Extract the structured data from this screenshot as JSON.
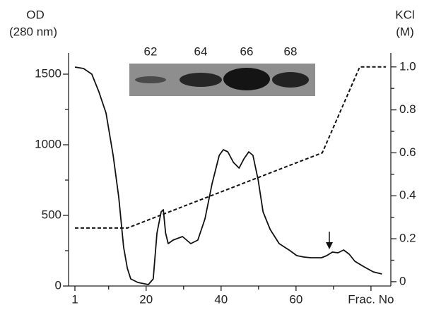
{
  "chart_data": {
    "type": "line",
    "y_label_lines": [
      "OD",
      "(280 nm)"
    ],
    "y2_label_lines": [
      "KCl",
      "(M)"
    ],
    "inset_lanes": [
      "62",
      "64",
      "66",
      "68"
    ],
    "xlim": [
      -0.7,
      85.3
    ],
    "xticks": [
      1,
      20,
      40,
      60,
      {
        "value": 80,
        "label": "Frac. No"
      }
    ],
    "xminor_ticks": [
      10,
      30,
      50,
      70
    ],
    "ylim": [
      0,
      1650
    ],
    "yticks": [
      0,
      500,
      1000,
      1500
    ],
    "yminor_ticks": [
      250,
      750,
      1250
    ],
    "y2lim": [
      -0.02,
      1.065
    ],
    "y2ticks": [
      0,
      0.2,
      0.4,
      0.6,
      0.8,
      {
        "value": 1,
        "label": "1.0"
      }
    ],
    "y2minor_ticks": [
      0.1,
      0.3,
      0.5,
      0.7,
      0.9
    ],
    "series": [
      {
        "color": "#111111",
        "style": "solid",
        "axis": "y",
        "x": [
          1.0,
          3.3,
          5.5,
          7.4,
          9.3,
          11.2,
          12.7,
          14.0,
          15.0,
          15.9,
          17.8,
          20.6,
          21.9,
          22.9,
          24.0,
          24.6,
          25.2,
          25.9,
          27.2,
          29.7,
          31.9,
          33.8,
          35.7,
          37.6,
          39.5,
          40.6,
          41.8,
          43.3,
          44.8,
          46.1,
          47.4,
          48.5,
          49.9,
          51.2,
          53.1,
          55.5,
          58.4,
          60.2,
          62.1,
          64.0,
          66.8,
          68.2,
          69.7,
          71.2,
          72.7,
          74.2,
          75.7,
          78.2,
          80.6,
          82.9
        ],
        "values": [
          1550,
          1540,
          1500,
          1375,
          1225,
          925,
          625,
          275,
          125,
          50,
          25,
          10,
          50,
          375,
          525,
          540,
          375,
          300,
          325,
          350,
          300,
          325,
          475,
          725,
          925,
          965,
          950,
          875,
          835,
          900,
          950,
          925,
          750,
          525,
          400,
          300,
          250,
          215,
          205,
          200,
          200,
          215,
          240,
          235,
          255,
          225,
          175,
          135,
          100,
          85
        ]
      },
      {
        "color": "#111111",
        "style": "dashed",
        "axis": "y2",
        "x": [
          1,
          15,
          67,
          77,
          84
        ],
        "values": [
          0.25,
          0.25,
          0.6,
          1.0,
          1.0
        ]
      }
    ]
  }
}
